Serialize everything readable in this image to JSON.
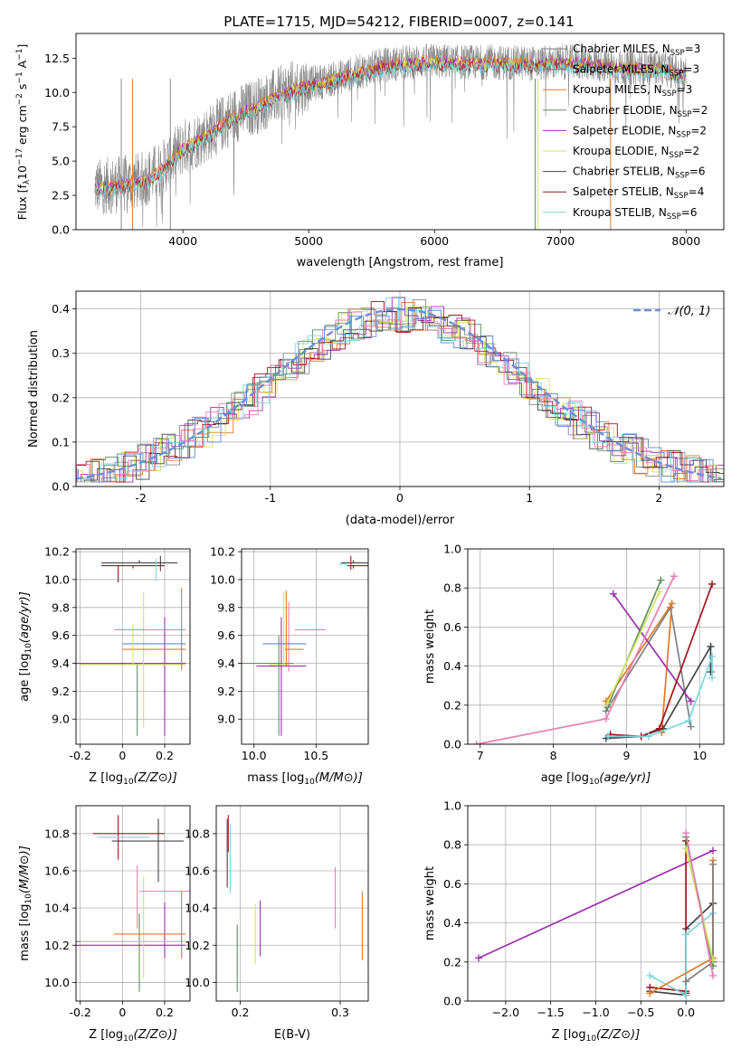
{
  "title": "PLATE=1715, MJD=54212, FIBERID=0007, z=0.141",
  "colors": {
    "Chabrier MILES": "#808080",
    "Salpeter MILES": "#7f7f7f",
    "Kroupa MILES": "#e07b2a",
    "Chabrier ELODIE": "#5e8f5e",
    "Salpeter ELODIE": "#9b2fae",
    "Kroupa ELODIE": "#d4e25a",
    "Chabrier STELIB": "#444444",
    "Salpeter STELIB": "#a0151a",
    "Kroupa STELIB": "#7ad6e0",
    "pink": "#e67fb5",
    "blue": "#5f88cf",
    "normal": "#6a8fd8"
  },
  "chart_data": [
    {
      "id": "spectrum",
      "type": "line",
      "title": "PLATE=1715, MJD=54212, FIBERID=0007, z=0.141",
      "xlabel": "wavelength [Angstrom, rest frame]",
      "ylabel": "Flux [f$_\\lambda$ 10$^{-17}$ erg cm$^{-2}$ s$^{-1}$ A$^{-1}$]",
      "ylabel_display": [
        "Flux [f",
        "λ",
        "10",
        "−17",
        " erg cm",
        "−2",
        " s",
        "−1",
        " A",
        "−1",
        "]"
      ],
      "xlim": [
        3150,
        8300
      ],
      "ylim": [
        0,
        14.3
      ],
      "xticks": [
        4000,
        5000,
        6000,
        7000,
        8000
      ],
      "yticks": [
        0.0,
        2.5,
        5.0,
        7.5,
        10.0,
        12.5
      ],
      "legend_position": "right",
      "series": [
        {
          "name": "Chabrier MILES",
          "nssp": "3"
        },
        {
          "name": "Salpeter MILES",
          "nssp": "3"
        },
        {
          "name": "Kroupa MILES",
          "nssp": "3"
        },
        {
          "name": "Chabrier ELODIE",
          "nssp": "2"
        },
        {
          "name": "Salpeter ELODIE",
          "nssp": "2"
        },
        {
          "name": "Kroupa ELODIE",
          "nssp": "2"
        },
        {
          "name": "Chabrier STELIB",
          "nssp": "6"
        },
        {
          "name": "Salpeter STELIB",
          "nssp": "4"
        },
        {
          "name": "Kroupa STELIB",
          "nssp": "6"
        }
      ],
      "continuum_points": [
        [
          3300,
          3.1
        ],
        [
          3500,
          3.3
        ],
        [
          3700,
          3.7
        ],
        [
          3850,
          4.6
        ],
        [
          4000,
          6.0
        ],
        [
          4200,
          7.0
        ],
        [
          4400,
          8.3
        ],
        [
          4600,
          9.1
        ],
        [
          4800,
          10.0
        ],
        [
          5000,
          10.6
        ],
        [
          5200,
          11.0
        ],
        [
          5400,
          11.5
        ],
        [
          5600,
          12.0
        ],
        [
          5800,
          12.2
        ],
        [
          6000,
          12.3
        ],
        [
          6200,
          12.2
        ],
        [
          6500,
          12.2
        ],
        [
          6800,
          12.1
        ],
        [
          7000,
          12.2
        ],
        [
          7200,
          12.2
        ],
        [
          7500,
          11.8
        ],
        [
          7800,
          11.8
        ],
        [
          8000,
          11.3
        ]
      ]
    },
    {
      "id": "residuals",
      "type": "histogram",
      "xlabel": "(data-model)/error",
      "ylabel": "Normed distribution",
      "xlim": [
        -2.5,
        2.5
      ],
      "ylim": [
        0,
        0.44
      ],
      "xticks": [
        -2,
        -1,
        0,
        1,
        2
      ],
      "yticks": [
        0.0,
        0.1,
        0.2,
        0.3,
        0.4
      ],
      "legend": "𝒩(0, 1)",
      "grid": true
    },
    {
      "id": "age_vs_Z",
      "type": "errorbar",
      "xlabel": "Z [log10(Z/Z⊙)]",
      "ylabel": "age  [log10(age/yr)]",
      "xlim": [
        -0.22,
        0.32
      ],
      "ylim": [
        8.82,
        10.22
      ],
      "xticks": [
        -0.2,
        0.0,
        0.2
      ],
      "yticks": [
        9.0,
        9.2,
        9.4,
        9.6,
        9.8,
        10.0,
        10.2
      ]
    },
    {
      "id": "age_vs_mass",
      "type": "errorbar",
      "xlabel": "mass [log10(M/M⊙)]",
      "ylabel": "",
      "xlim": [
        9.9,
        10.92
      ],
      "ylim": [
        8.82,
        10.22
      ],
      "xticks": [
        10.0,
        10.5
      ],
      "yticks": [
        9.0,
        9.2,
        9.4,
        9.6,
        9.8,
        10.0,
        10.2
      ]
    },
    {
      "id": "weight_vs_age",
      "type": "line",
      "xlabel": "age  [log10(age/yr)]",
      "ylabel": "mass weight",
      "xlim": [
        6.83,
        10.33
      ],
      "ylim": [
        0,
        1.0
      ],
      "xticks": [
        7,
        8,
        9,
        10
      ],
      "yticks": [
        0.0,
        0.2,
        0.4,
        0.6,
        0.8,
        1.0
      ],
      "series": [
        {
          "name": "Chabrier MILES",
          "x": [
            8.72,
            9.6,
            9.88
          ],
          "y": [
            0.17,
            0.7,
            0.09
          ]
        },
        {
          "name": "Kroupa MILES",
          "x": [
            8.72,
            9.62,
            9.48
          ],
          "y": [
            0.22,
            0.72,
            0.06
          ]
        },
        {
          "name": "Chabrier ELODIE",
          "x": [
            8.74,
            9.47
          ],
          "y": [
            0.19,
            0.84
          ]
        },
        {
          "name": "Salpeter ELODIE",
          "x": [
            8.82,
            9.88
          ],
          "y": [
            0.77,
            0.22
          ]
        },
        {
          "name": "Kroupa ELODIE",
          "x": [
            8.74,
            9.45
          ],
          "y": [
            0.21,
            0.78
          ]
        },
        {
          "name": "Chabrier STELIB",
          "x": [
            8.72,
            9.2,
            9.5,
            10.15,
            10.15
          ],
          "y": [
            0.03,
            0.04,
            0.08,
            0.5,
            0.37
          ]
        },
        {
          "name": "Salpeter STELIB",
          "x": [
            8.78,
            9.2,
            9.45,
            10.17
          ],
          "y": [
            0.05,
            0.04,
            0.08,
            0.82
          ]
        },
        {
          "name": "Kroupa STELIB",
          "x": [
            8.75,
            9.3,
            9.85,
            10.17,
            10.17
          ],
          "y": [
            0.04,
            0.04,
            0.12,
            0.45,
            0.34
          ]
        },
        {
          "name": "pink",
          "x": [
            6.95,
            8.72,
            9.65
          ],
          "y": [
            0.0,
            0.13,
            0.86
          ]
        }
      ]
    },
    {
      "id": "mass_vs_Z",
      "type": "errorbar",
      "xlabel": "Z [log10(Z/Z⊙)]",
      "ylabel": "mass [log10(M/M⊙)]",
      "xlim": [
        -0.22,
        0.32
      ],
      "ylim": [
        9.9,
        10.95
      ],
      "xticks": [
        -0.2,
        0.0,
        0.2
      ],
      "yticks": [
        10.0,
        10.2,
        10.4,
        10.6,
        10.8
      ]
    },
    {
      "id": "mass_vs_ebv",
      "type": "errorbar",
      "xlabel": "E(B-V)",
      "ylabel": "",
      "xlim": [
        0.176,
        0.328
      ],
      "ylim": [
        9.9,
        10.95
      ],
      "xticks": [
        0.2,
        0.3
      ],
      "yticks": [
        10.0,
        10.2,
        10.4,
        10.6,
        10.8
      ]
    },
    {
      "id": "weight_vs_Z",
      "type": "line",
      "xlabel": "Z [log10(Z/Z⊙)]",
      "ylabel": "mass weight",
      "xlim": [
        -2.42,
        0.42
      ],
      "ylim": [
        0,
        1.0
      ],
      "xticks": [
        -2.0,
        -1.5,
        -1.0,
        -0.5,
        0.0
      ],
      "yticks": [
        0.0,
        0.2,
        0.4,
        0.6,
        0.8,
        1.0
      ],
      "series": [
        {
          "name": "Salpeter ELODIE",
          "x": [
            -2.3,
            0.3
          ],
          "y": [
            0.22,
            0.77
          ]
        },
        {
          "name": "Chabrier STELIB",
          "x": [
            -0.4,
            0.0,
            0.0,
            0.3,
            0.3
          ],
          "y": [
            0.05,
            0.03,
            0.37,
            0.5,
            0.2
          ]
        },
        {
          "name": "Salpeter STELIB",
          "x": [
            -0.4,
            0.0,
            0.0,
            0.0
          ],
          "y": [
            0.07,
            0.05,
            0.82,
            0.04
          ]
        },
        {
          "name": "Kroupa STELIB",
          "x": [
            -0.4,
            0.0,
            0.0,
            0.3,
            0.3
          ],
          "y": [
            0.13,
            0.03,
            0.34,
            0.45,
            0.2
          ]
        },
        {
          "name": "Kroupa MILES",
          "x": [
            -0.4,
            0.3,
            0.3
          ],
          "y": [
            0.04,
            0.22,
            0.72
          ]
        },
        {
          "name": "Chabrier MILES",
          "x": [
            0.0,
            0.3,
            0.3
          ],
          "y": [
            0.1,
            0.2,
            0.7
          ]
        },
        {
          "name": "Chabrier ELODIE",
          "x": [
            0.0,
            0.3
          ],
          "y": [
            0.84,
            0.18
          ]
        },
        {
          "name": "Kroupa ELODIE",
          "x": [
            0.0,
            0.3
          ],
          "y": [
            0.78,
            0.21
          ]
        },
        {
          "name": "pink",
          "x": [
            0.0,
            0.3
          ],
          "y": [
            0.86,
            0.13
          ]
        }
      ]
    }
  ]
}
